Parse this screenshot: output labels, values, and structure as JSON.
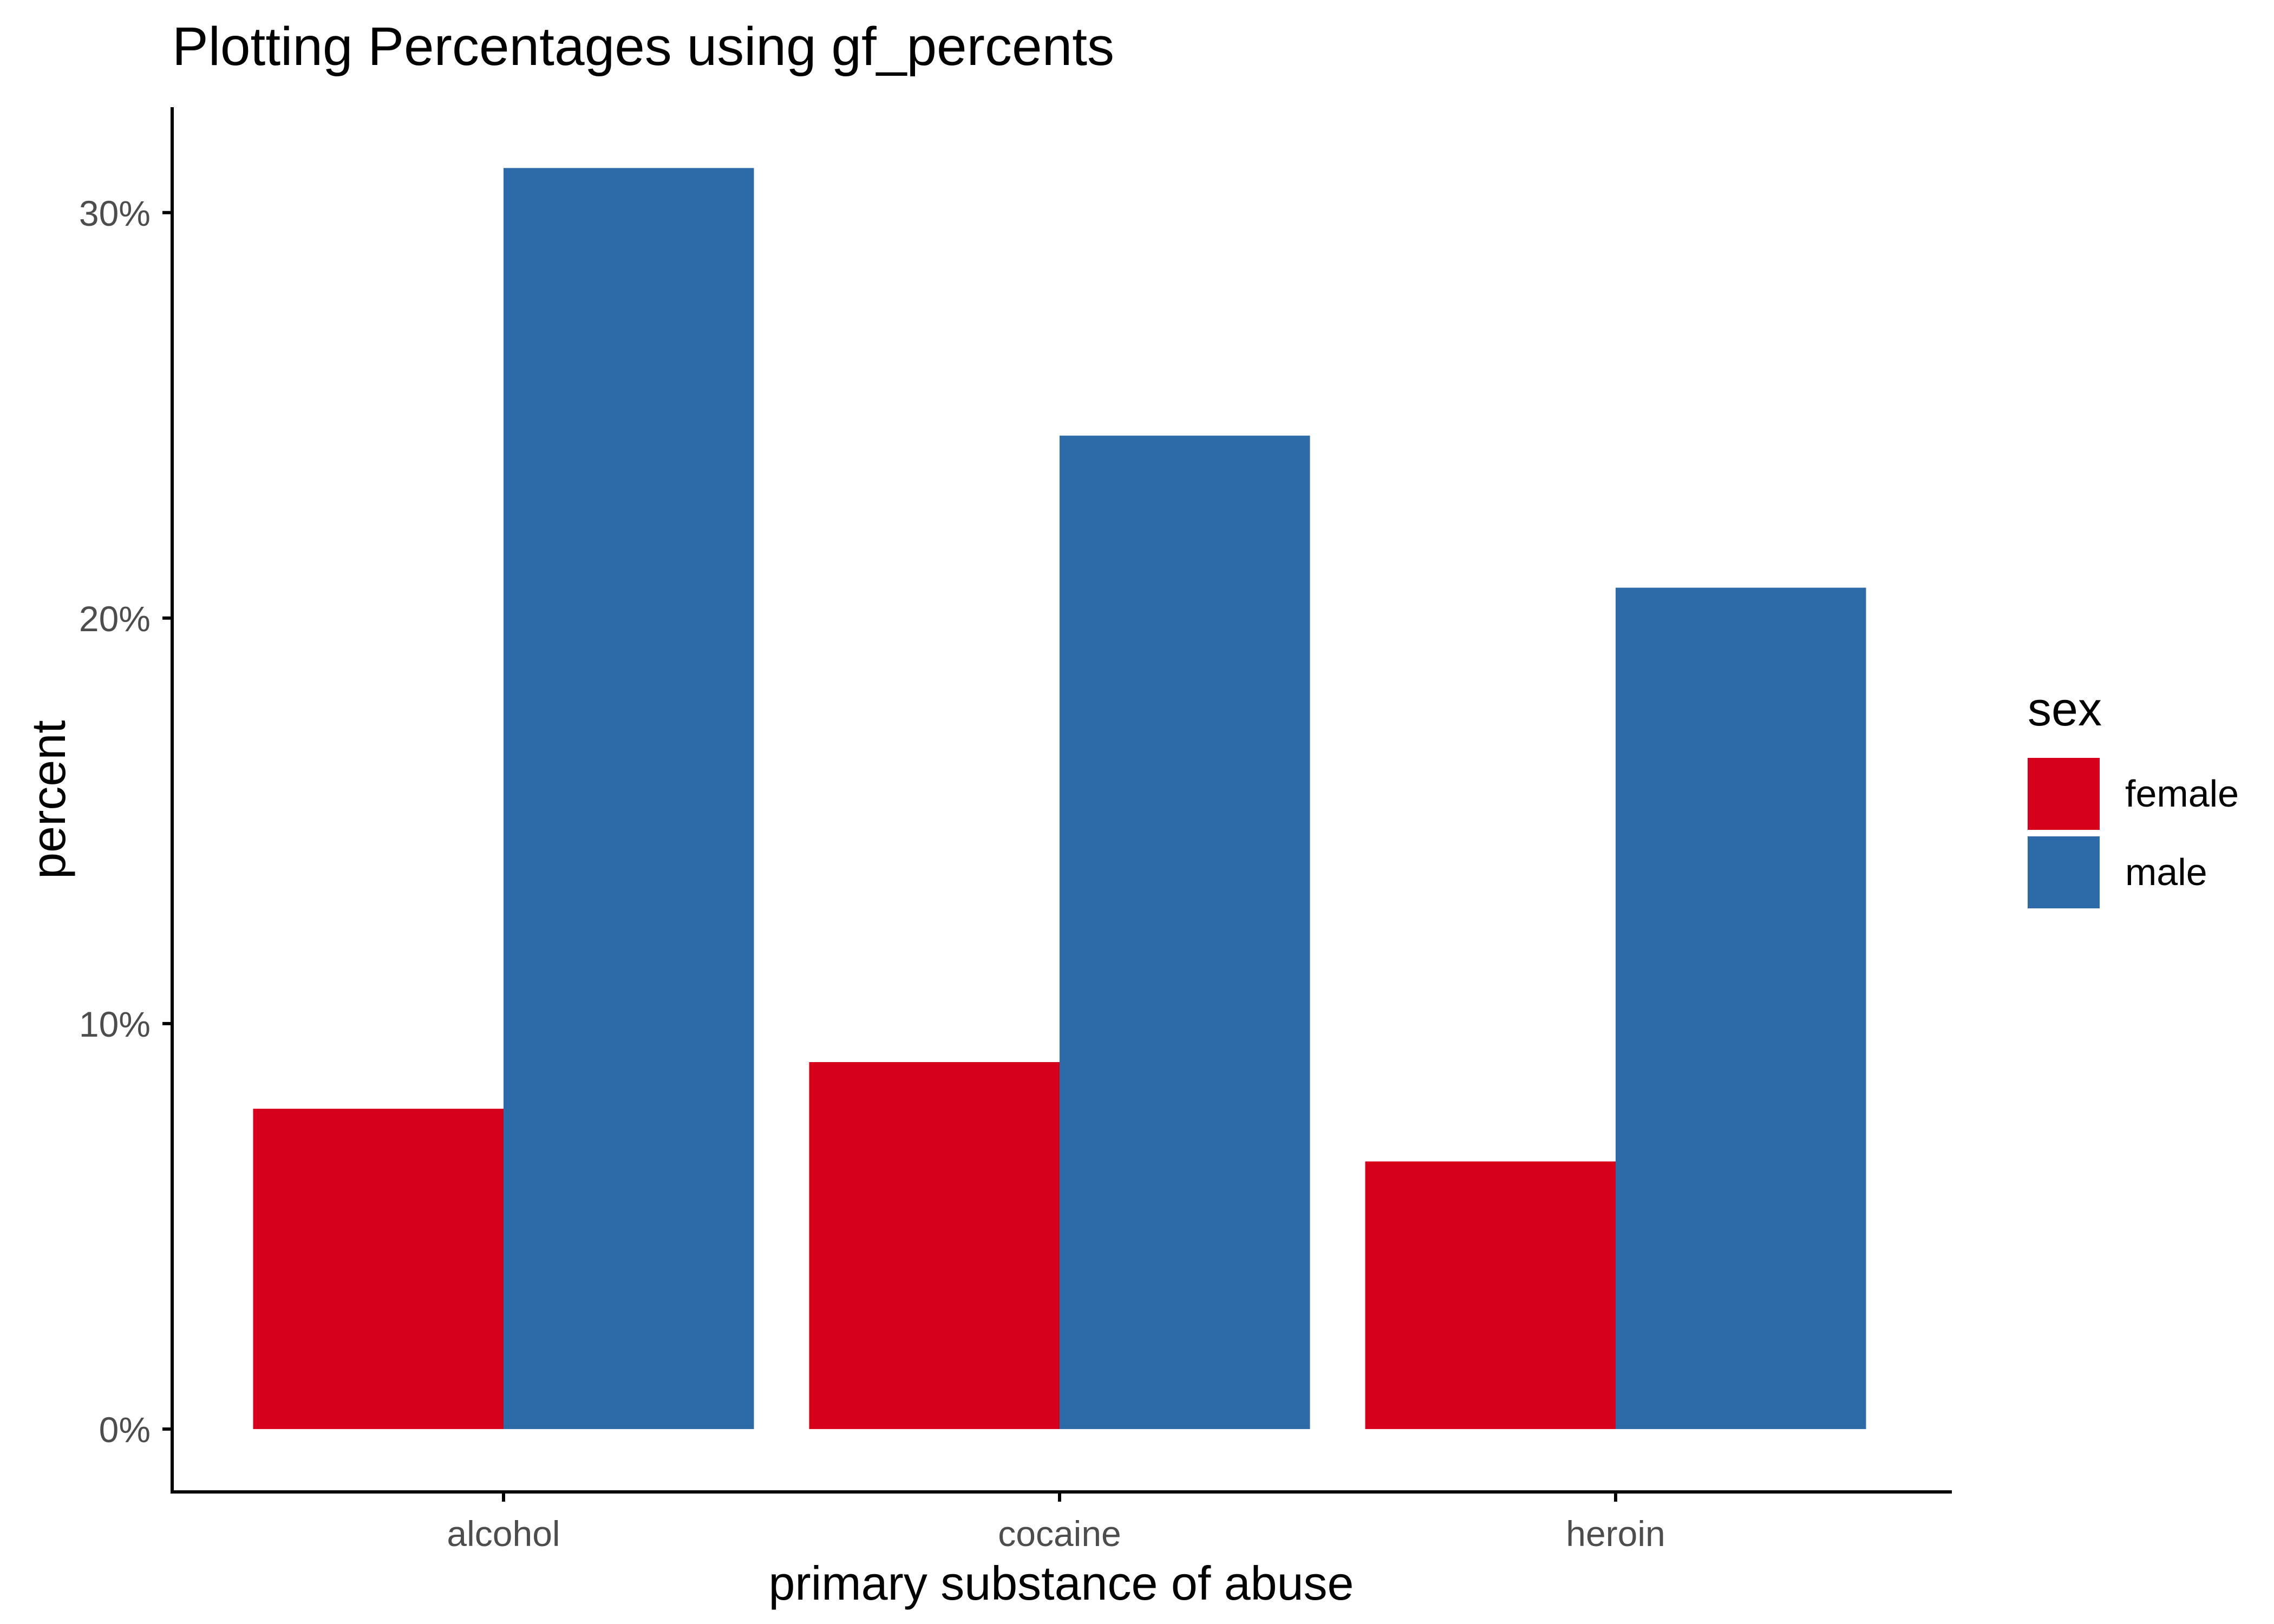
{
  "chart_data": {
    "type": "bar",
    "title": "Plotting Percentages using gf_percents",
    "xlabel": "primary substance of abuse",
    "ylabel": "percent",
    "categories": [
      "alcohol",
      "cocaine",
      "heroin"
    ],
    "series": [
      {
        "name": "female",
        "values": [
          7.9,
          9.05,
          6.6
        ],
        "color": "#d7001a"
      },
      {
        "name": "male",
        "values": [
          31.1,
          24.5,
          20.75
        ],
        "color": "#2d6aa8"
      }
    ],
    "ylim": [
      -1.55,
      32.6
    ],
    "yticks": [
      0,
      10,
      20,
      30
    ],
    "ytick_labels": [
      "0%",
      "10%",
      "20%",
      "30%"
    ],
    "legend": {
      "title": "sex",
      "position": "right"
    },
    "grid": false
  }
}
